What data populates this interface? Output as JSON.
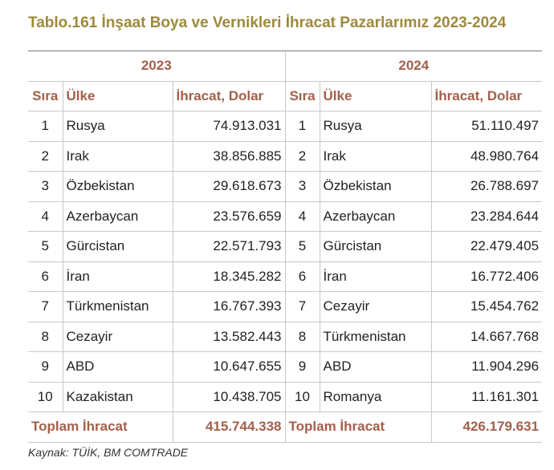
{
  "header": {
    "title": "Tablo.161 İnşaat Boya ve Vernikleri İhracat Pazarlarımız 2023-2024"
  },
  "table": {
    "blocks": [
      {
        "year": "2023",
        "headers": [
          "Sıra",
          "Ülke",
          "İhracat, Dolar"
        ],
        "rows": [
          [
            "1",
            "Rusya",
            "74.913.031"
          ],
          [
            "2",
            "Irak",
            "38.856.885"
          ],
          [
            "3",
            "Özbekistan",
            "29.618.673"
          ],
          [
            "4",
            "Azerbaycan",
            "23.576.659"
          ],
          [
            "5",
            "Gürcistan",
            "22.571.793"
          ],
          [
            "6",
            "İran",
            "18.345.282"
          ],
          [
            "7",
            "Türkmenistan",
            "16.767.393"
          ],
          [
            "8",
            "Cezayir",
            "13.582.443"
          ],
          [
            "9",
            "ABD",
            "10.647.655"
          ],
          [
            "10",
            "Kazakistan",
            "10.438.705"
          ]
        ],
        "total_label": "Toplam İhracat",
        "total": "415.744.338"
      },
      {
        "year": "2024",
        "headers": [
          "Sıra",
          "Ülke",
          "İhracat, Dolar"
        ],
        "rows": [
          [
            "1",
            "Rusya",
            "51.110.497"
          ],
          [
            "2",
            "Irak",
            "48.980.764"
          ],
          [
            "3",
            "Özbekistan",
            "26.788.697"
          ],
          [
            "4",
            "Azerbaycan",
            "23.284.644"
          ],
          [
            "5",
            "Gürcistan",
            "22.479.405"
          ],
          [
            "6",
            "İran",
            "16.772.406"
          ],
          [
            "7",
            "Cezayir",
            "15.454.762"
          ],
          [
            "8",
            "Türkmenistan",
            "14.667.768"
          ],
          [
            "9",
            "ABD",
            "11.904.296"
          ],
          [
            "10",
            "Romanya",
            "11.161.301"
          ]
        ],
        "total_label": "Toplam İhracat",
        "total": "426.179.631"
      }
    ]
  },
  "footer": {
    "source": "Kaynak: TÜİK, BM COMTRADE"
  }
}
